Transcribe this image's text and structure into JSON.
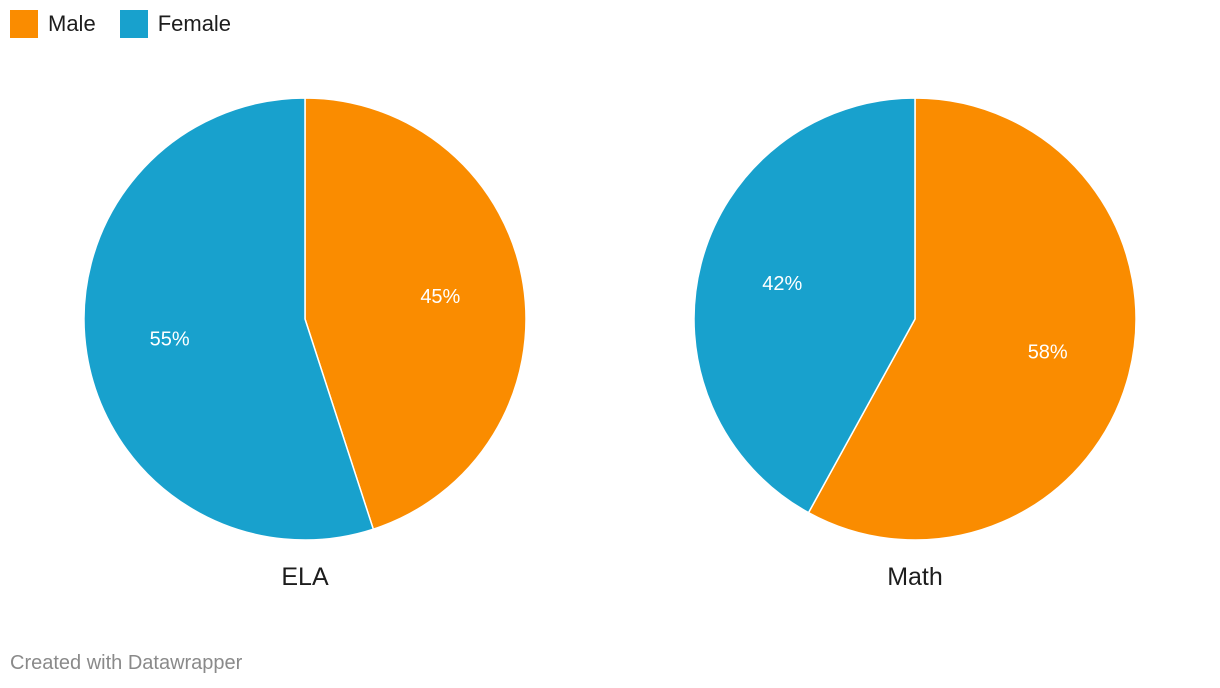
{
  "legend": {
    "male_label": "Male",
    "female_label": "Female"
  },
  "colors": {
    "male": "#fa8c00",
    "female": "#18a1cd"
  },
  "credit": "Created with Datawrapper",
  "chart_data": [
    {
      "type": "pie",
      "title": "ELA",
      "slices": [
        {
          "name": "Male",
          "value": 45,
          "label": "45%"
        },
        {
          "name": "Female",
          "value": 55,
          "label": "55%"
        }
      ]
    },
    {
      "type": "pie",
      "title": "Math",
      "slices": [
        {
          "name": "Male",
          "value": 58,
          "label": "58%"
        },
        {
          "name": "Female",
          "value": 42,
          "label": "42%"
        }
      ]
    }
  ]
}
